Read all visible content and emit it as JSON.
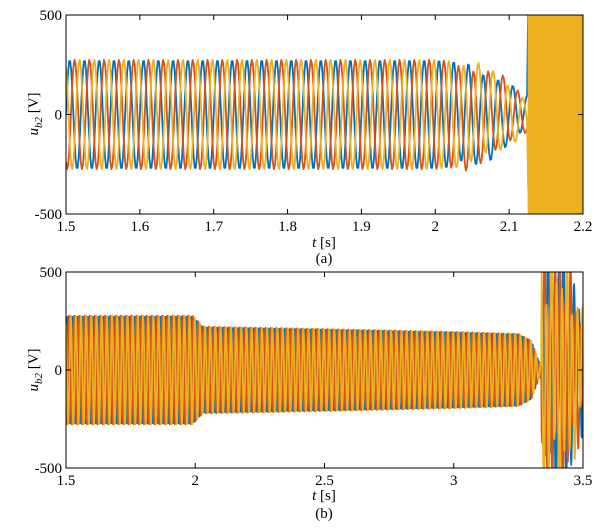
{
  "chart_data": [
    {
      "type": "line",
      "caption": "(a)",
      "xlabel_var": "t",
      "xlabel_unit": "[s]",
      "ylabel_var": "u",
      "ylabel_sub": "b2",
      "ylabel_unit": "[V]",
      "xlim": [
        1.5,
        2.2
      ],
      "ylim": [
        -500,
        500
      ],
      "xticks": [
        "1.5",
        "1.6",
        "1.7",
        "1.8",
        "1.9",
        "2",
        "2.1",
        "2.2"
      ],
      "xtick_values": [
        1.5,
        1.6,
        1.7,
        1.8,
        1.9,
        2.0,
        2.1,
        2.2
      ],
      "yticks": [
        "500",
        "0",
        "-500"
      ],
      "ytick_values": [
        500,
        0,
        -500
      ],
      "frequency_hz": 50,
      "grid": false,
      "series": [
        {
          "phase_deg": 0,
          "color": "#0072bd",
          "envelope_t": [
            1.5,
            2.0,
            2.03,
            2.06,
            2.09,
            2.11,
            2.12
          ],
          "envelope_amp": [
            275,
            275,
            265,
            235,
            180,
            120,
            90
          ],
          "blowup_t": 2.125,
          "blowup_amp": 520
        },
        {
          "phase_deg": -120,
          "color": "#d95319",
          "envelope_t": [
            1.5,
            2.0,
            2.03,
            2.06,
            2.09,
            2.11,
            2.12
          ],
          "envelope_amp": [
            275,
            275,
            265,
            235,
            180,
            120,
            90
          ],
          "blowup_t": 2.125,
          "blowup_amp": 520
        },
        {
          "phase_deg": 120,
          "color": "#edb120",
          "envelope_t": [
            1.5,
            2.0,
            2.03,
            2.06,
            2.09,
            2.11,
            2.12
          ],
          "envelope_amp": [
            275,
            275,
            265,
            235,
            180,
            120,
            90
          ],
          "blowup_t": 2.125,
          "blowup_amp": 520
        }
      ]
    },
    {
      "type": "line",
      "caption": "(b)",
      "xlabel_var": "t",
      "xlabel_unit": "[s]",
      "ylabel_var": "u",
      "ylabel_sub": "b2",
      "ylabel_unit": "[V]",
      "xlim": [
        1.5,
        3.5
      ],
      "ylim": [
        -500,
        500
      ],
      "xticks": [
        "1.5",
        "2",
        "2.5",
        "3",
        "3.5"
      ],
      "xtick_values": [
        1.5,
        2.0,
        2.5,
        3.0,
        3.5
      ],
      "yticks": [
        "500",
        "0",
        "-500"
      ],
      "ytick_values": [
        500,
        0,
        -500
      ],
      "frequency_hz": 50,
      "grid": false,
      "series": [
        {
          "phase_deg": 0,
          "color": "#0072bd",
          "envelope_t": [
            1.5,
            1.99,
            2.03,
            2.5,
            3.0,
            3.25,
            3.3,
            3.33
          ],
          "envelope_amp": [
            278,
            278,
            222,
            210,
            195,
            185,
            150,
            40
          ],
          "burst_t": [
            3.34,
            3.38,
            3.43,
            3.48,
            3.5
          ],
          "burst_amp": [
            520,
            480,
            520,
            300,
            260
          ]
        },
        {
          "phase_deg": -120,
          "color": "#d95319",
          "envelope_t": [
            1.5,
            1.99,
            2.03,
            2.5,
            3.0,
            3.25,
            3.3,
            3.33
          ],
          "envelope_amp": [
            278,
            278,
            222,
            210,
            195,
            185,
            150,
            40
          ],
          "burst_t": [
            3.34,
            3.38,
            3.43,
            3.48,
            3.5
          ],
          "burst_amp": [
            520,
            480,
            520,
            300,
            260
          ]
        },
        {
          "phase_deg": 120,
          "color": "#edb120",
          "envelope_t": [
            1.5,
            1.99,
            2.03,
            2.5,
            3.0,
            3.25,
            3.3,
            3.33
          ],
          "envelope_amp": [
            278,
            278,
            222,
            210,
            195,
            185,
            150,
            40
          ],
          "burst_t": [
            3.34,
            3.38,
            3.43,
            3.48,
            3.5
          ],
          "burst_amp": [
            520,
            480,
            520,
            300,
            260
          ]
        }
      ]
    }
  ]
}
